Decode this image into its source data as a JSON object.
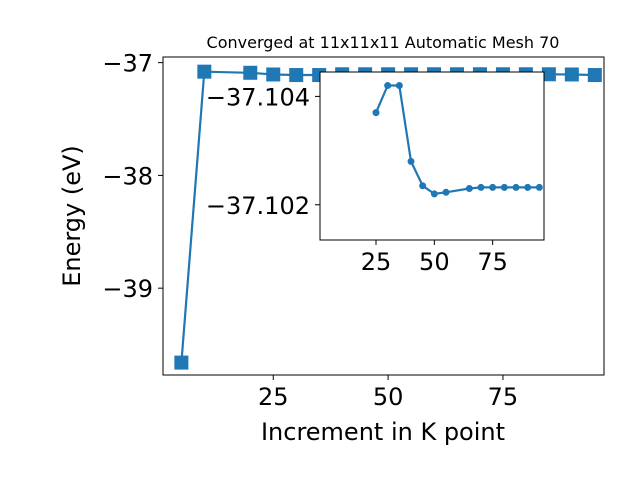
{
  "chart_data": [
    {
      "type": "line",
      "title": "Converged at 11x11x11 Automatic Mesh 70",
      "xlabel": "Increment in K point",
      "ylabel": "Energy (eV)",
      "xlim": [
        1,
        97
      ],
      "ylim": [
        -39.77,
        -36.95
      ],
      "x_ticks": [
        25,
        50,
        75
      ],
      "x_tick_labels": [
        "25",
        "50",
        "75"
      ],
      "y_ticks": [
        -37,
        -38,
        -39
      ],
      "y_tick_labels": [
        "−37",
        "−38",
        "−39"
      ],
      "color": "#1f77b4",
      "marker": "square",
      "grid": false,
      "x": [
        5,
        10,
        20,
        25,
        30,
        35,
        40,
        45,
        50,
        55,
        60,
        65,
        70,
        75,
        80,
        85,
        90,
        95
      ],
      "y": [
        -39.66,
        -37.08,
        -37.09,
        -37.105,
        -37.11,
        -37.11,
        -37.1032,
        -37.1032,
        -37.1032,
        -37.1032,
        -37.1031,
        -37.1031,
        -37.1031,
        -37.1031,
        -37.1031,
        -37.1031,
        -37.105,
        -37.11
      ]
    },
    {
      "type": "line",
      "inset": true,
      "xlim": [
        1,
        97
      ],
      "ylim": [
        -37.10135,
        -37.10445
      ],
      "x_ticks": [
        25,
        50,
        75
      ],
      "x_tick_labels": [
        "25",
        "50",
        "75"
      ],
      "y_ticks": [
        -37.104,
        -37.102
      ],
      "y_tick_labels": [
        "−37.104",
        "−37.102"
      ],
      "color": "#1f77b4",
      "marker": "circle",
      "x": [
        25,
        30,
        35,
        40,
        45,
        50,
        55,
        65,
        70,
        75,
        80,
        85,
        90,
        95
      ],
      "y": [
        -37.1037,
        -37.1042,
        -37.1042,
        -37.1028,
        -37.10235,
        -37.1022,
        -37.10223,
        -37.1023,
        -37.10232,
        -37.10232,
        -37.10232,
        -37.10232,
        -37.10232,
        -37.10232
      ]
    }
  ]
}
